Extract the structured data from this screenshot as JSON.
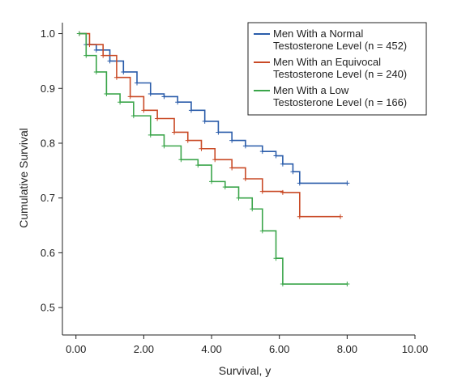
{
  "chart_data": {
    "type": "line",
    "title": "",
    "xlabel": "Survival, y",
    "ylabel": "Cumulative Survival",
    "xlim": [
      -0.4,
      10.0
    ],
    "ylim": [
      0.45,
      1.02
    ],
    "xticks": [
      0,
      2,
      4,
      6,
      8,
      10
    ],
    "xtick_labels": [
      "0.00",
      "2.00",
      "4.00",
      "6.00",
      "8.00",
      "10.00"
    ],
    "yticks": [
      0.5,
      0.6,
      0.7,
      0.8,
      0.9,
      1.0
    ],
    "ytick_labels": [
      "0.5",
      "0.6",
      "0.7",
      "0.8",
      "0.9",
      "1.0"
    ],
    "grid": false,
    "legend_position": "top-right",
    "step": true,
    "series": [
      {
        "name": "Men With a Normal Testosterone Level (n = 452)",
        "legend_lines": [
          "Men With a Normal",
          "Testosterone Level (n = 452)"
        ],
        "color": "#2a5caa",
        "x": [
          0.1,
          0.3,
          0.6,
          1.0,
          1.4,
          1.8,
          2.2,
          2.6,
          3.0,
          3.4,
          3.8,
          4.2,
          4.6,
          5.0,
          5.5,
          5.9,
          6.1,
          6.4,
          6.6,
          8.0
        ],
        "y": [
          1.0,
          0.98,
          0.97,
          0.95,
          0.93,
          0.91,
          0.89,
          0.885,
          0.875,
          0.86,
          0.84,
          0.82,
          0.805,
          0.795,
          0.785,
          0.777,
          0.762,
          0.748,
          0.727,
          0.727
        ]
      },
      {
        "name": "Men With an Equivocal Testosterone Level (n = 240)",
        "legend_lines": [
          "Men With an Equivocal",
          "Testosterone Level (n = 240)"
        ],
        "color": "#c94a26",
        "x": [
          0.1,
          0.4,
          0.8,
          1.2,
          1.6,
          2.0,
          2.4,
          2.9,
          3.3,
          3.7,
          4.1,
          4.6,
          5.0,
          5.5,
          6.1,
          6.6,
          7.8
        ],
        "y": [
          1.0,
          0.98,
          0.96,
          0.92,
          0.885,
          0.86,
          0.845,
          0.82,
          0.805,
          0.79,
          0.77,
          0.755,
          0.735,
          0.712,
          0.71,
          0.666,
          0.666
        ]
      },
      {
        "name": "Men With a Low Testosterone Level (n = 166)",
        "legend_lines": [
          "Men With a Low",
          "Testosterone Level (n = 166)"
        ],
        "color": "#3aa54a",
        "x": [
          0.1,
          0.3,
          0.6,
          0.9,
          1.3,
          1.7,
          2.2,
          2.6,
          3.1,
          3.6,
          4.0,
          4.4,
          4.8,
          5.2,
          5.5,
          5.9,
          6.1,
          8.0
        ],
        "y": [
          1.0,
          0.96,
          0.93,
          0.89,
          0.875,
          0.85,
          0.815,
          0.795,
          0.77,
          0.76,
          0.73,
          0.72,
          0.7,
          0.68,
          0.64,
          0.59,
          0.543,
          0.543
        ]
      }
    ]
  }
}
